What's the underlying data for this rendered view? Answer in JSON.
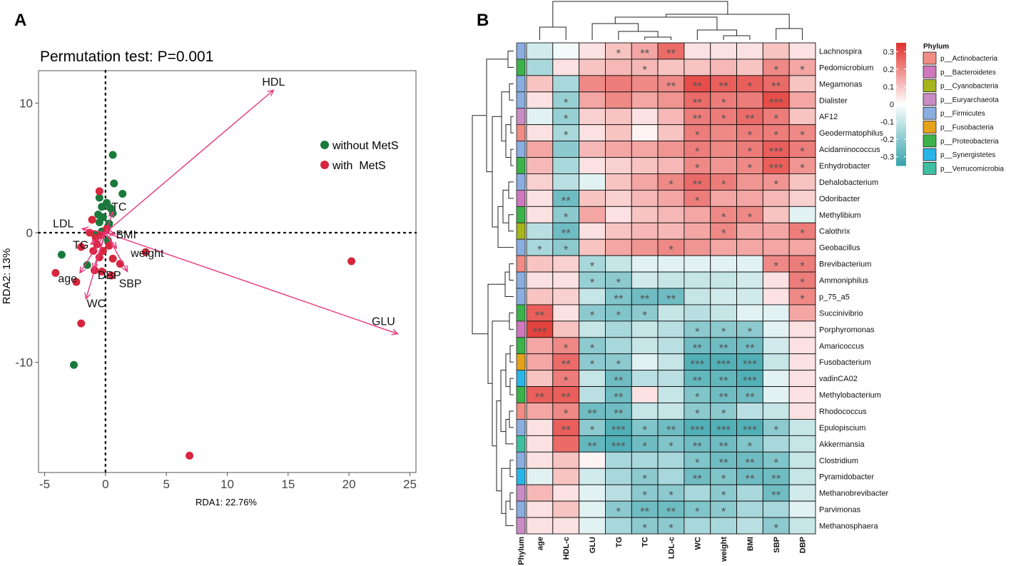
{
  "panels": {
    "a_label": "A",
    "b_label": "B"
  },
  "chart_data": [
    {
      "type": "scatter",
      "subtype": "RDA biplot",
      "title": "Permutation test: P=0.001",
      "xlabel": "RDA1: 22.76%",
      "ylabel": "RDA2: 13%",
      "xlim": [
        -5.5,
        25.5
      ],
      "ylim": [
        -18.5,
        12.5
      ],
      "xticks": [
        -5,
        0,
        5,
        10,
        15,
        20,
        25
      ],
      "yticks": [
        -10,
        0,
        10
      ],
      "legend": {
        "position": "top-right",
        "entries": [
          {
            "label": "without MetS",
            "color": "#1a7a3c"
          },
          {
            "label": "with  MetS",
            "color": "#d7263d"
          }
        ]
      },
      "arrow_color": "#e6367a",
      "arrows": [
        {
          "label": "HDL",
          "x": 13.8,
          "y": 11.0
        },
        {
          "label": "GLU",
          "x": 24.0,
          "y": -7.8
        },
        {
          "label": "TC",
          "x": 0.6,
          "y": 1.6
        },
        {
          "label": "LDL",
          "x": -1.9,
          "y": 0.3
        },
        {
          "label": "BMI",
          "x": 0.8,
          "y": -0.1
        },
        {
          "label": "TG",
          "x": -1.2,
          "y": -0.9
        },
        {
          "label": "weight",
          "x": 0.9,
          "y": -1.2
        },
        {
          "label": "DBP",
          "x": -1.0,
          "y": -2.8
        },
        {
          "label": "age",
          "x": -2.1,
          "y": -3.1
        },
        {
          "label": "SBP",
          "x": 1.8,
          "y": -3.0
        },
        {
          "label": "WC",
          "x": -1.6,
          "y": -5.1
        }
      ],
      "series": [
        {
          "name": "without MetS",
          "points": [
            [
              0.6,
              6.0
            ],
            [
              0.7,
              3.8
            ],
            [
              1.4,
              3.0
            ],
            [
              -0.5,
              2.7
            ],
            [
              0.1,
              2.3
            ],
            [
              -0.3,
              2.0
            ],
            [
              0.4,
              1.9
            ],
            [
              0.6,
              1.5
            ],
            [
              -0.6,
              1.4
            ],
            [
              -0.2,
              1.2
            ],
            [
              -0.5,
              0.8
            ],
            [
              0.3,
              0.7
            ],
            [
              -0.3,
              0.1
            ],
            [
              -0.9,
              -0.1
            ],
            [
              0.2,
              -0.6
            ],
            [
              -3.6,
              -1.7
            ],
            [
              -2.6,
              -10.2
            ],
            [
              -1.5,
              -2.5
            ]
          ]
        },
        {
          "name": "with  MetS",
          "points": [
            [
              -0.5,
              3.2
            ],
            [
              -1.1,
              1.0
            ],
            [
              -1.3,
              0.0
            ],
            [
              -0.8,
              -0.4
            ],
            [
              -2.0,
              -1.1
            ],
            [
              -1.0,
              -1.4
            ],
            [
              -0.2,
              -1.4
            ],
            [
              0.3,
              -1.0
            ],
            [
              -0.5,
              -1.9
            ],
            [
              0.6,
              -2.0
            ],
            [
              -0.9,
              -2.9
            ],
            [
              -0.3,
              -3.0
            ],
            [
              0.5,
              -3.3
            ],
            [
              1.2,
              -2.4
            ],
            [
              3.3,
              -1.5
            ],
            [
              -4.1,
              -3.1
            ],
            [
              -2.4,
              -3.8
            ],
            [
              -2.0,
              -7.0
            ],
            [
              6.9,
              -17.2
            ],
            [
              20.2,
              -2.2
            ],
            [
              -0.4,
              -0.2
            ],
            [
              0.1,
              0.3
            ],
            [
              -0.7,
              -0.9
            ]
          ]
        }
      ]
    },
    {
      "type": "heatmap",
      "columns": [
        "Phylum",
        "age",
        "HDL-c",
        "GLU",
        "TG",
        "TC",
        "LDL-c",
        "WC",
        "weight",
        "BMI",
        "SBP",
        "DBP"
      ],
      "rows": [
        "Lachnospira",
        "Pedomicrobium",
        "Megamonas",
        "Dialister",
        "AF12",
        "Geodermatophilus",
        "Acidaminococcus",
        "Enhydrobacter",
        "Dehalobacterium",
        "Odoribacter",
        "Methylibium",
        "Calothrix",
        "Geobacillus",
        "Brevibacterium",
        "Ammoniphilus",
        "p_75_a5",
        "Succinivibrio",
        "Porphyromonas",
        "Amaricoccus",
        "Fusobacterium",
        "vadinCA02",
        "Methylobacterium",
        "Rhodococcus",
        "Epulopiscium",
        "Akkermansia",
        "Clostridium",
        "Pyramidobacter",
        "Methanobrevibacter",
        "Parvimonas",
        "Methanosphaera"
      ],
      "row_phylum": [
        4,
        6,
        4,
        4,
        3,
        0,
        4,
        6,
        4,
        1,
        6,
        2,
        4,
        0,
        4,
        4,
        6,
        1,
        6,
        5,
        7,
        6,
        0,
        4,
        8,
        4,
        7,
        3,
        4,
        3
      ],
      "values": [
        [
          -0.08,
          -0.02,
          0.05,
          0.1,
          0.15,
          0.25,
          0.05,
          0.05,
          0.05,
          0.1,
          0.05
        ],
        [
          -0.15,
          0.05,
          0.1,
          0.12,
          0.12,
          0.1,
          0.1,
          0.12,
          0.1,
          0.2,
          0.15
        ],
        [
          0.1,
          -0.15,
          0.2,
          0.22,
          0.2,
          0.2,
          0.3,
          0.27,
          0.27,
          0.25,
          0.1
        ],
        [
          0.05,
          -0.18,
          0.15,
          0.2,
          0.15,
          0.18,
          0.25,
          0.22,
          0.22,
          0.3,
          0.15
        ],
        [
          -0.05,
          -0.18,
          0.08,
          0.1,
          0.05,
          0.12,
          0.22,
          0.22,
          0.25,
          0.22,
          0.1
        ],
        [
          0.05,
          -0.15,
          0.05,
          0.1,
          0.02,
          0.1,
          0.22,
          0.2,
          0.22,
          0.22,
          0.2
        ],
        [
          0.15,
          -0.2,
          0.12,
          0.15,
          0.15,
          0.18,
          0.22,
          0.2,
          0.22,
          0.27,
          0.22
        ],
        [
          0.12,
          -0.15,
          0.05,
          0.08,
          0.1,
          0.12,
          0.2,
          0.18,
          0.2,
          0.27,
          0.18
        ],
        [
          0.08,
          -0.12,
          -0.05,
          0.1,
          0.15,
          0.2,
          0.25,
          0.22,
          0.18,
          0.18,
          0.1
        ],
        [
          0.05,
          -0.25,
          0.1,
          0.08,
          0.12,
          0.15,
          0.22,
          0.15,
          0.15,
          0.12,
          0.08
        ],
        [
          0.05,
          -0.2,
          0.15,
          0.05,
          0.1,
          0.12,
          0.15,
          0.2,
          0.2,
          0.1,
          -0.05
        ],
        [
          -0.12,
          -0.25,
          0.05,
          0.1,
          0.12,
          0.12,
          0.15,
          0.2,
          0.15,
          0.15,
          0.22
        ],
        [
          -0.15,
          -0.2,
          0.1,
          0.15,
          0.18,
          0.2,
          0.18,
          0.15,
          0.15,
          0.15,
          0.15
        ],
        [
          0.1,
          0.08,
          -0.15,
          -0.1,
          -0.05,
          -0.05,
          -0.05,
          -0.05,
          -0.05,
          0.2,
          0.22
        ],
        [
          0.05,
          0.05,
          -0.18,
          -0.2,
          -0.08,
          -0.1,
          -0.1,
          -0.1,
          -0.08,
          0.05,
          0.22
        ],
        [
          0.1,
          0.08,
          -0.1,
          -0.22,
          -0.25,
          -0.25,
          -0.1,
          -0.08,
          -0.08,
          0.05,
          0.2
        ],
        [
          0.27,
          0.05,
          -0.2,
          -0.22,
          -0.2,
          -0.1,
          -0.12,
          -0.1,
          -0.05,
          -0.05,
          0.15
        ],
        [
          0.32,
          0.1,
          -0.1,
          -0.15,
          -0.1,
          -0.12,
          -0.2,
          -0.2,
          -0.2,
          -0.05,
          0.05
        ],
        [
          0.15,
          0.2,
          -0.2,
          -0.15,
          -0.1,
          -0.12,
          -0.25,
          -0.25,
          -0.25,
          -0.08,
          0.05
        ],
        [
          0.15,
          0.25,
          -0.2,
          -0.2,
          -0.05,
          -0.1,
          -0.3,
          -0.3,
          -0.3,
          -0.1,
          0.05
        ],
        [
          0.1,
          0.22,
          -0.1,
          -0.25,
          -0.12,
          -0.12,
          -0.27,
          -0.27,
          -0.3,
          -0.05,
          0.05
        ],
        [
          0.27,
          0.27,
          -0.12,
          -0.25,
          0.05,
          -0.1,
          -0.22,
          -0.25,
          -0.25,
          -0.05,
          0.05
        ],
        [
          0.15,
          0.2,
          -0.25,
          -0.25,
          -0.1,
          -0.1,
          -0.2,
          -0.2,
          -0.12,
          -0.1,
          0.05
        ],
        [
          0.05,
          0.27,
          -0.2,
          -0.3,
          -0.22,
          -0.25,
          -0.3,
          -0.3,
          -0.3,
          -0.2,
          -0.1
        ],
        [
          0.05,
          0.25,
          -0.27,
          -0.3,
          -0.25,
          -0.22,
          -0.25,
          -0.25,
          -0.22,
          -0.15,
          -0.1
        ],
        [
          0.05,
          0.1,
          0.02,
          -0.15,
          -0.15,
          -0.15,
          -0.22,
          -0.25,
          -0.25,
          -0.22,
          -0.1
        ],
        [
          -0.05,
          0.1,
          -0.08,
          -0.15,
          -0.2,
          -0.15,
          -0.25,
          -0.22,
          -0.25,
          -0.25,
          -0.1
        ],
        [
          0.12,
          0.05,
          -0.05,
          -0.12,
          -0.2,
          -0.2,
          -0.15,
          -0.2,
          -0.15,
          -0.25,
          -0.08
        ],
        [
          0.05,
          0.1,
          -0.05,
          -0.2,
          -0.25,
          -0.25,
          -0.22,
          -0.2,
          -0.15,
          -0.15,
          -0.05
        ],
        [
          0.05,
          0.05,
          -0.05,
          -0.15,
          -0.2,
          -0.2,
          -0.15,
          -0.15,
          -0.12,
          -0.2,
          -0.1
        ]
      ],
      "stars": [
        [
          "",
          "",
          "",
          "*",
          "**",
          "**",
          "",
          "",
          "",
          "",
          ""
        ],
        [
          "",
          "",
          "",
          "",
          "*",
          "",
          "",
          "",
          "",
          "*",
          "*"
        ],
        [
          "",
          "",
          "",
          "",
          "",
          "**",
          "**",
          "**",
          "*",
          "**",
          ""
        ],
        [
          "",
          "*",
          "",
          "",
          "",
          "",
          "**",
          "*",
          "",
          "***",
          ""
        ],
        [
          "",
          "*",
          "",
          "",
          "",
          "",
          "**",
          "*",
          "**",
          "*",
          ""
        ],
        [
          "",
          "*",
          "",
          "",
          "",
          "",
          "*",
          "",
          "*",
          "*",
          "*"
        ],
        [
          "",
          "",
          "",
          "",
          "",
          "",
          "*",
          "",
          "*",
          "***",
          "*"
        ],
        [
          "",
          "",
          "",
          "",
          "",
          "",
          "*",
          "",
          "*",
          "***",
          "*"
        ],
        [
          "",
          "",
          "",
          "",
          "",
          "*",
          "**",
          "*",
          "",
          "*",
          ""
        ],
        [
          "",
          "**",
          "",
          "",
          "",
          "",
          "*",
          "",
          "",
          "",
          ""
        ],
        [
          "",
          "*",
          "",
          "",
          "",
          "",
          "",
          "*",
          "*",
          "",
          ""
        ],
        [
          "",
          "**",
          "",
          "",
          "",
          "",
          "",
          "*",
          "",
          "",
          "*"
        ],
        [
          "*",
          "*",
          "",
          "",
          "",
          "*",
          "",
          "",
          "",
          "",
          ""
        ],
        [
          "",
          "",
          "*",
          "",
          "",
          "",
          "",
          "",
          "",
          "*",
          "*"
        ],
        [
          "",
          "",
          "*",
          "*",
          "",
          "",
          "",
          "",
          "",
          "",
          "*"
        ],
        [
          "",
          "",
          "",
          "**",
          "**",
          "**",
          "",
          "",
          "",
          "",
          "*"
        ],
        [
          "**",
          "",
          "*",
          "*",
          "*",
          "",
          "",
          "",
          "",
          "",
          ""
        ],
        [
          "***",
          "",
          "",
          "",
          "",
          "",
          "*",
          "*",
          "*",
          "",
          ""
        ],
        [
          "",
          "*",
          "*",
          "",
          "",
          "",
          "**",
          "**",
          "**",
          "",
          ""
        ],
        [
          "",
          "**",
          "*",
          "*",
          "",
          "",
          "***",
          "***",
          "***",
          "",
          ""
        ],
        [
          "",
          "*",
          "",
          "**",
          "",
          "",
          "**",
          "**",
          "***",
          "",
          ""
        ],
        [
          "**",
          "**",
          "",
          "**",
          "",
          "",
          "*",
          "**",
          "**",
          "",
          ""
        ],
        [
          "",
          "*",
          "**",
          "**",
          "",
          "",
          "*",
          "*",
          "",
          "",
          ""
        ],
        [
          "",
          "**",
          "*",
          "***",
          "*",
          "**",
          "***",
          "***",
          "***",
          "*",
          ""
        ],
        [
          "",
          "",
          "**",
          "***",
          "*",
          "*",
          "**",
          "**",
          "*",
          "",
          ""
        ],
        [
          "",
          "",
          "",
          "",
          "",
          "",
          "*",
          "**",
          "**",
          "*",
          ""
        ],
        [
          "",
          "",
          "",
          "",
          "*",
          "",
          "**",
          "*",
          "**",
          "**",
          ""
        ],
        [
          "",
          "",
          "",
          "",
          "*",
          "*",
          "",
          "*",
          "",
          "**",
          ""
        ],
        [
          "",
          "",
          "",
          "*",
          "**",
          "**",
          "*",
          "*",
          "",
          "",
          ""
        ],
        [
          "",
          "",
          "",
          "",
          "*",
          "*",
          "",
          "",
          "",
          "*",
          ""
        ]
      ],
      "color_scale": {
        "title": "",
        "range": [
          -0.35,
          0.35
        ],
        "ticks": [
          "0.3",
          "0.2",
          "0.1",
          "0",
          "-0.1",
          "-0.2",
          "-0.3"
        ],
        "tick_values": [
          0.3,
          0.2,
          0.1,
          0,
          -0.1,
          -0.2,
          -0.3
        ],
        "low_color": "#35a3ab",
        "mid_color": "#ffffff",
        "high_color": "#e2302b"
      },
      "phylum_legend": {
        "title": "Phylum",
        "entries": [
          {
            "label": "p__Actinobacteria",
            "color": "#f08c84"
          },
          {
            "label": "p__Bacteroidetes",
            "color": "#cf78bd"
          },
          {
            "label": "p__Cyanobacteria",
            "color": "#a6b51c"
          },
          {
            "label": "p__Euryarchaeota",
            "color": "#c98cc4"
          },
          {
            "label": "p__Firmicutes",
            "color": "#8aaee0"
          },
          {
            "label": "p__Fusobacteria",
            "color": "#e3a21a"
          },
          {
            "label": "p__Proteobacteria",
            "color": "#3db24b"
          },
          {
            "label": "p__Synergistetes",
            "color": "#2ab5e8"
          },
          {
            "label": "p__Verrucomicrobia",
            "color": "#3fbf9f"
          }
        ]
      }
    }
  ]
}
